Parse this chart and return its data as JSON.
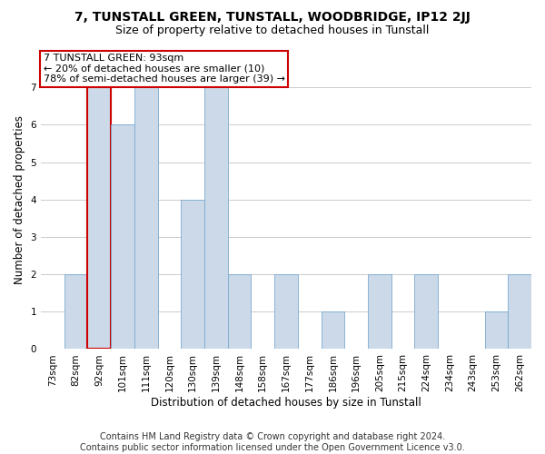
{
  "title": "7, TUNSTALL GREEN, TUNSTALL, WOODBRIDGE, IP12 2JJ",
  "subtitle": "Size of property relative to detached houses in Tunstall",
  "xlabel": "Distribution of detached houses by size in Tunstall",
  "ylabel": "Number of detached properties",
  "categories": [
    "73sqm",
    "82sqm",
    "92sqm",
    "101sqm",
    "111sqm",
    "120sqm",
    "130sqm",
    "139sqm",
    "148sqm",
    "158sqm",
    "167sqm",
    "177sqm",
    "186sqm",
    "196sqm",
    "205sqm",
    "215sqm",
    "224sqm",
    "234sqm",
    "243sqm",
    "253sqm",
    "262sqm"
  ],
  "values": [
    0,
    2,
    7,
    6,
    7,
    0,
    4,
    7,
    2,
    0,
    2,
    0,
    1,
    0,
    2,
    0,
    2,
    0,
    0,
    1,
    2
  ],
  "highlight_index": 2,
  "bar_color": "#ccd9e8",
  "bar_edge_color": "#7aaad0",
  "highlight_bar_edge_color": "#cc0000",
  "annotation_text": "7 TUNSTALL GREEN: 93sqm\n← 20% of detached houses are smaller (10)\n78% of semi-detached houses are larger (39) →",
  "annotation_box_facecolor": "#ffffff",
  "annotation_box_edgecolor": "#cc0000",
  "ylim": [
    0,
    8
  ],
  "yticks": [
    0,
    1,
    2,
    3,
    4,
    5,
    6,
    7
  ],
  "footer_text": "Contains HM Land Registry data © Crown copyright and database right 2024.\nContains public sector information licensed under the Open Government Licence v3.0.",
  "bg_color": "#ffffff",
  "plot_bg_color": "#ffffff",
  "grid_color": "#cccccc",
  "title_fontsize": 10,
  "subtitle_fontsize": 9,
  "xlabel_fontsize": 8.5,
  "ylabel_fontsize": 8.5,
  "tick_fontsize": 7.5,
  "footer_fontsize": 7,
  "ann_fontsize": 8
}
